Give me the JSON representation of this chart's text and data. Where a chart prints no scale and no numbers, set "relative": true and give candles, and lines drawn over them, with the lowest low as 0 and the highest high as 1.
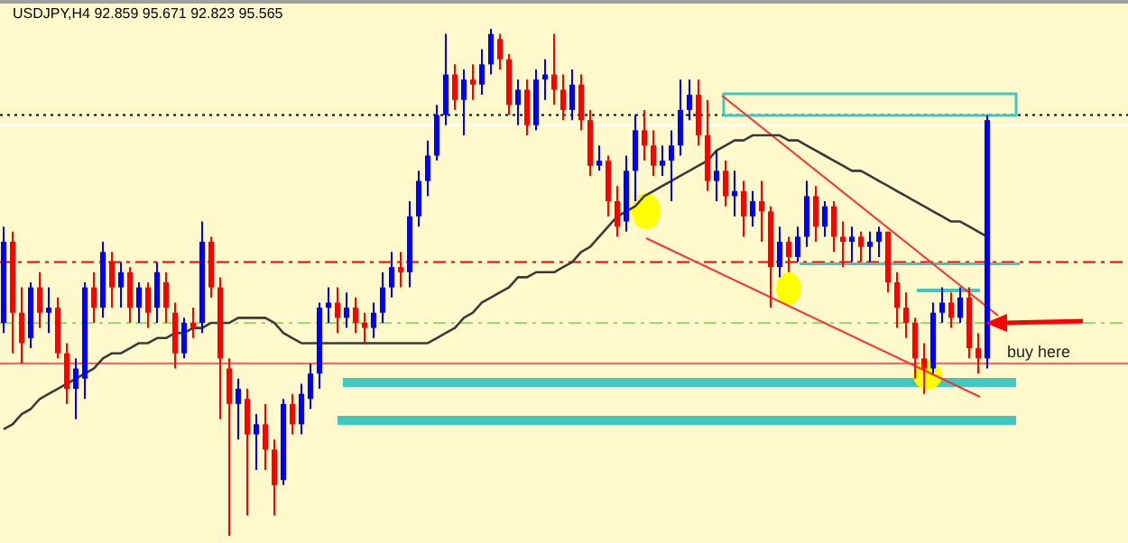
{
  "chart_data": {
    "type": "candlestick",
    "relative": true,
    "title": "USDJPY,H4 92.859 95.671 92.823 95.565",
    "annotations": [
      "buy here"
    ],
    "categories": [
      null,
      null,
      null,
      null,
      null,
      null,
      null,
      null,
      null,
      null,
      null,
      null,
      null,
      null,
      null,
      null,
      null,
      null,
      null,
      null,
      null,
      null,
      null,
      null,
      null,
      null,
      null,
      null,
      null,
      null,
      null,
      null,
      null,
      null,
      null,
      null,
      null,
      null,
      null,
      null,
      null,
      null,
      null,
      null,
      null,
      null,
      null,
      null,
      null,
      null,
      null,
      null,
      null,
      null,
      null,
      null,
      null,
      null,
      null,
      null,
      null,
      null,
      null,
      null,
      null,
      null,
      null,
      null,
      null,
      null,
      null,
      null,
      null,
      null,
      null,
      null,
      null,
      null,
      null,
      null,
      null,
      null,
      null,
      null,
      null,
      null,
      null,
      null,
      null,
      null,
      null,
      null,
      null,
      null,
      null,
      null,
      null,
      null,
      null,
      null,
      null,
      null,
      null,
      null,
      null,
      null,
      null,
      null,
      null,
      null
    ],
    "ohlc": [
      [
        0.42,
        0.61,
        0.4,
        0.58
      ],
      [
        0.58,
        0.6,
        0.36,
        0.44
      ],
      [
        0.44,
        0.49,
        0.34,
        0.38
      ],
      [
        0.39,
        0.5,
        0.37,
        0.49
      ],
      [
        0.49,
        0.52,
        0.41,
        0.44
      ],
      [
        0.44,
        0.49,
        0.4,
        0.45
      ],
      [
        0.45,
        0.47,
        0.35,
        0.36
      ],
      [
        0.36,
        0.38,
        0.26,
        0.29
      ],
      [
        0.29,
        0.35,
        0.23,
        0.33
      ],
      [
        0.31,
        0.5,
        0.27,
        0.49
      ],
      [
        0.49,
        0.52,
        0.42,
        0.45
      ],
      [
        0.45,
        0.58,
        0.43,
        0.56
      ],
      [
        0.54,
        0.56,
        0.45,
        0.49
      ],
      [
        0.49,
        0.54,
        0.45,
        0.52
      ],
      [
        0.52,
        0.53,
        0.42,
        0.45
      ],
      [
        0.45,
        0.5,
        0.42,
        0.49
      ],
      [
        0.49,
        0.5,
        0.41,
        0.44
      ],
      [
        0.45,
        0.54,
        0.42,
        0.52
      ],
      [
        0.5,
        0.52,
        0.42,
        0.45
      ],
      [
        0.44,
        0.46,
        0.33,
        0.36
      ],
      [
        0.36,
        0.43,
        0.35,
        0.42
      ],
      [
        0.42,
        0.45,
        0.39,
        0.41
      ],
      [
        0.42,
        0.62,
        0.4,
        0.58
      ],
      [
        0.58,
        0.59,
        0.47,
        0.49
      ],
      [
        0.49,
        0.51,
        0.23,
        0.35
      ],
      [
        0.33,
        0.35,
        0.0,
        0.26
      ],
      [
        0.26,
        0.31,
        0.19,
        0.29
      ],
      [
        0.27,
        0.29,
        0.04,
        0.2
      ],
      [
        0.2,
        0.24,
        0.13,
        0.22
      ],
      [
        0.22,
        0.26,
        0.13,
        0.17
      ],
      [
        0.17,
        0.19,
        0.04,
        0.1
      ],
      [
        0.11,
        0.27,
        0.1,
        0.26
      ],
      [
        0.26,
        0.28,
        0.2,
        0.22
      ],
      [
        0.22,
        0.3,
        0.2,
        0.28
      ],
      [
        0.27,
        0.34,
        0.25,
        0.32
      ],
      [
        0.32,
        0.46,
        0.29,
        0.45
      ],
      [
        0.45,
        0.49,
        0.42,
        0.46
      ],
      [
        0.46,
        0.49,
        0.4,
        0.43
      ],
      [
        0.43,
        0.48,
        0.41,
        0.45
      ],
      [
        0.45,
        0.47,
        0.4,
        0.42
      ],
      [
        0.42,
        0.44,
        0.38,
        0.41
      ],
      [
        0.41,
        0.46,
        0.39,
        0.44
      ],
      [
        0.44,
        0.52,
        0.42,
        0.49
      ],
      [
        0.49,
        0.56,
        0.47,
        0.53
      ],
      [
        0.53,
        0.56,
        0.49,
        0.52
      ],
      [
        0.52,
        0.66,
        0.49,
        0.63
      ],
      [
        0.63,
        0.72,
        0.61,
        0.7
      ],
      [
        0.7,
        0.78,
        0.67,
        0.75
      ],
      [
        0.75,
        0.85,
        0.74,
        0.83
      ],
      [
        0.83,
        0.99,
        0.81,
        0.91
      ],
      [
        0.91,
        0.93,
        0.84,
        0.86
      ],
      [
        0.86,
        0.92,
        0.79,
        0.9
      ],
      [
        0.9,
        0.93,
        0.86,
        0.89
      ],
      [
        0.89,
        0.96,
        0.87,
        0.93
      ],
      [
        0.93,
        1.0,
        0.91,
        0.99
      ],
      [
        0.98,
        0.99,
        0.92,
        0.94
      ],
      [
        0.94,
        0.95,
        0.83,
        0.85
      ],
      [
        0.85,
        0.9,
        0.81,
        0.88
      ],
      [
        0.88,
        0.9,
        0.79,
        0.81
      ],
      [
        0.81,
        0.92,
        0.8,
        0.9
      ],
      [
        0.9,
        0.94,
        0.86,
        0.91
      ],
      [
        0.91,
        0.99,
        0.85,
        0.88
      ],
      [
        0.88,
        0.91,
        0.82,
        0.84
      ],
      [
        0.84,
        0.92,
        0.82,
        0.89
      ],
      [
        0.89,
        0.91,
        0.8,
        0.82
      ],
      [
        0.82,
        0.84,
        0.71,
        0.73
      ],
      [
        0.73,
        0.77,
        0.72,
        0.74
      ],
      [
        0.74,
        0.75,
        0.63,
        0.66
      ],
      [
        0.66,
        0.69,
        0.59,
        0.61
      ],
      [
        0.62,
        0.75,
        0.6,
        0.72
      ],
      [
        0.72,
        0.83,
        0.66,
        0.8
      ],
      [
        0.8,
        0.84,
        0.74,
        0.77
      ],
      [
        0.77,
        0.8,
        0.71,
        0.73
      ],
      [
        0.73,
        0.77,
        0.71,
        0.74
      ],
      [
        0.74,
        0.8,
        0.66,
        0.77
      ],
      [
        0.77,
        0.9,
        0.75,
        0.84
      ],
      [
        0.84,
        0.9,
        0.82,
        0.87
      ],
      [
        0.87,
        0.9,
        0.77,
        0.79
      ],
      [
        0.79,
        0.86,
        0.68,
        0.7
      ],
      [
        0.7,
        0.76,
        0.66,
        0.72
      ],
      [
        0.72,
        0.74,
        0.65,
        0.67
      ],
      [
        0.67,
        0.72,
        0.63,
        0.68
      ],
      [
        0.68,
        0.7,
        0.59,
        0.63
      ],
      [
        0.63,
        0.68,
        0.61,
        0.66
      ],
      [
        0.66,
        0.7,
        0.58,
        0.64
      ],
      [
        0.64,
        0.65,
        0.45,
        0.53
      ],
      [
        0.53,
        0.61,
        0.51,
        0.58
      ],
      [
        0.58,
        0.59,
        0.52,
        0.55
      ],
      [
        0.55,
        0.61,
        0.54,
        0.59
      ],
      [
        0.59,
        0.7,
        0.57,
        0.67
      ],
      [
        0.67,
        0.69,
        0.58,
        0.61
      ],
      [
        0.61,
        0.66,
        0.59,
        0.65
      ],
      [
        0.65,
        0.66,
        0.56,
        0.59
      ],
      [
        0.59,
        0.62,
        0.53,
        0.58
      ],
      [
        0.58,
        0.61,
        0.54,
        0.59
      ],
      [
        0.59,
        0.6,
        0.54,
        0.57
      ],
      [
        0.57,
        0.6,
        0.54,
        0.58
      ],
      [
        0.58,
        0.61,
        0.55,
        0.6
      ],
      [
        0.6,
        0.6,
        0.48,
        0.5
      ],
      [
        0.5,
        0.52,
        0.41,
        0.45
      ],
      [
        0.45,
        0.48,
        0.39,
        0.42
      ],
      [
        0.42,
        0.43,
        0.31,
        0.35
      ],
      [
        0.35,
        0.38,
        0.28,
        0.33
      ],
      [
        0.33,
        0.46,
        0.32,
        0.44
      ],
      [
        0.44,
        0.49,
        0.42,
        0.46
      ],
      [
        0.46,
        0.48,
        0.41,
        0.43
      ],
      [
        0.43,
        0.49,
        0.42,
        0.47
      ],
      [
        0.47,
        0.49,
        0.35,
        0.37
      ],
      [
        0.37,
        0.4,
        0.32,
        0.35
      ],
      [
        0.35,
        0.83,
        0.33,
        0.82
      ]
    ],
    "colors": [
      "#0000ff",
      "#ff0000",
      "#ff0000",
      "#0000ff",
      "#ff0000",
      "#0000ff",
      "#ff0000",
      "#ff0000",
      "#0000ff",
      "#0000ff",
      "#ff0000",
      "#0000ff",
      "#ff0000",
      "#0000ff",
      "#ff0000",
      "#0000ff",
      "#ff0000",
      "#0000ff",
      "#ff0000",
      "#ff0000",
      "#0000ff",
      "#ff0000",
      "#0000ff",
      "#ff0000",
      "#ff0000",
      "#ff0000",
      "#0000ff",
      "#ff0000",
      "#0000ff",
      "#ff0000",
      "#ff0000",
      "#0000ff",
      "#ff0000",
      "#0000ff",
      "#0000ff",
      "#0000ff",
      "#0000ff",
      "#ff0000",
      "#0000ff",
      "#ff0000",
      "#ff0000",
      "#0000ff",
      "#0000ff",
      "#0000ff",
      "#ff0000",
      "#0000ff",
      "#0000ff",
      "#0000ff",
      "#0000ff",
      "#0000ff",
      "#ff0000",
      "#0000ff",
      "#ff0000",
      "#0000ff",
      "#0000ff",
      "#ff0000",
      "#ff0000",
      "#0000ff",
      "#ff0000",
      "#0000ff",
      "#0000ff",
      "#ff0000",
      "#ff0000",
      "#0000ff",
      "#ff0000",
      "#ff0000",
      "#0000ff",
      "#ff0000",
      "#ff0000",
      "#0000ff",
      "#0000ff",
      "#ff0000",
      "#ff0000",
      "#0000ff",
      "#0000ff",
      "#0000ff",
      "#0000ff",
      "#ff0000",
      "#ff0000",
      "#0000ff",
      "#ff0000",
      "#0000ff",
      "#ff0000",
      "#0000ff",
      "#ff0000",
      "#ff0000",
      "#0000ff",
      "#ff0000",
      "#0000ff",
      "#0000ff",
      "#ff0000",
      "#0000ff",
      "#ff0000",
      "#ff0000",
      "#0000ff",
      "#ff0000",
      "#0000ff",
      "#0000ff",
      "#ff0000",
      "#ff0000",
      "#ff0000",
      "#ff0000",
      "#ff0000",
      "#0000ff",
      "#0000ff",
      "#ff0000",
      "#0000ff",
      "#ff0000",
      "#ff0000",
      "#0000ff"
    ],
    "series": [
      {
        "type": "line",
        "color": "#3a3a3a",
        "values": [
          0.21,
          0.22,
          0.24,
          0.25,
          0.27,
          0.28,
          0.29,
          0.3,
          0.31,
          0.32,
          0.33,
          0.35,
          0.36,
          0.36,
          0.37,
          0.38,
          0.38,
          0.39,
          0.39,
          0.4,
          0.4,
          0.41,
          0.41,
          0.42,
          0.42,
          0.42,
          0.43,
          0.43,
          0.43,
          0.43,
          0.42,
          0.4,
          0.39,
          0.38,
          0.38,
          0.38,
          0.38,
          0.38,
          0.38,
          0.38,
          0.38,
          0.38,
          0.38,
          0.38,
          0.38,
          0.38,
          0.38,
          0.38,
          0.39,
          0.4,
          0.41,
          0.43,
          0.44,
          0.46,
          0.47,
          0.48,
          0.49,
          0.51,
          0.51,
          0.52,
          0.52,
          0.52,
          0.53,
          0.54,
          0.56,
          0.57,
          0.59,
          0.61,
          0.63,
          0.64,
          0.65,
          0.67,
          0.68,
          0.69,
          0.7,
          0.71,
          0.72,
          0.73,
          0.74,
          0.76,
          0.77,
          0.78,
          0.78,
          0.79,
          0.79,
          0.79,
          0.79,
          0.78,
          0.78,
          0.77,
          0.76,
          0.75,
          0.74,
          0.73,
          0.72,
          0.72,
          0.71,
          0.7,
          0.69,
          0.68,
          0.67,
          0.66,
          0.65,
          0.64,
          0.63,
          0.62,
          0.62,
          0.61,
          0.6,
          0.59
        ]
      }
    ],
    "ref_lines": [
      {
        "axis": "y",
        "value": 0.83,
        "color": "#000000",
        "line_style": "dotted"
      },
      {
        "axis": "y",
        "value": 0.81,
        "color": "#ffffff",
        "line_style": "solid"
      },
      {
        "axis": "y",
        "value": 0.54,
        "color": "#ff0000",
        "line_style": "dashed"
      },
      {
        "axis": "y",
        "value": 0.42,
        "color": "#90e070",
        "line_style": "dashed"
      },
      {
        "axis": "y",
        "value": 0.34,
        "color": "#ff6060",
        "line_style": "solid"
      }
    ]
  }
}
